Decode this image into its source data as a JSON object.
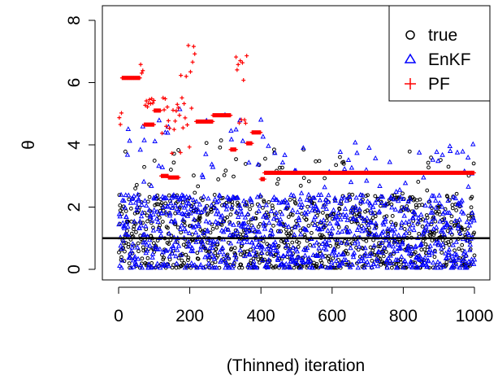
{
  "chart_data": {
    "type": "scatter",
    "title": "",
    "xlabel": "(Thinned) iteration",
    "ylabel": "θ",
    "xlim": [
      0,
      1000
    ],
    "ylim": [
      -0.2,
      8.2
    ],
    "x_ticks": [
      0,
      200,
      400,
      600,
      800,
      1000
    ],
    "y_ticks": [
      0,
      2,
      4,
      6,
      8
    ],
    "reference_line": {
      "y": 1.0,
      "color": "#000000"
    },
    "legend": {
      "position": "top-right",
      "entries": [
        "true",
        "EnKF",
        "PF"
      ]
    },
    "series": [
      {
        "name": "true",
        "marker": "circle",
        "color": "#000000",
        "n": 1000,
        "description_of_values": "dense cloud mostly 0–2.5, a few up to ~4.3"
      },
      {
        "name": "EnKF",
        "marker": "triangle",
        "color": "#0000ff",
        "n": 1000,
        "description_of_values": "dense cloud mostly 0–3, a few up to ~5.6"
      },
      {
        "name": "PF",
        "marker": "plus",
        "color": "#ff0000",
        "segments": [
          {
            "x": [
              2,
              8
            ],
            "y": [
              4.4,
              5.1
            ]
          },
          {
            "x": [
              10,
              60
            ],
            "y": 6.15
          },
          {
            "x": [
              62,
              70
            ],
            "y": [
              6.3,
              6.7
            ]
          },
          {
            "x": [
              72,
              100
            ],
            "y": 4.65
          },
          {
            "x": [
              75,
              100
            ],
            "y": [
              5.2,
              5.5
            ]
          },
          {
            "x": [
              100,
              118
            ],
            "y": 5.1
          },
          {
            "x": [
              120,
              140
            ],
            "y": 3.0
          },
          {
            "x": [
              122,
              145
            ],
            "y": [
              4.1,
              6.0
            ]
          },
          {
            "x": [
              140,
              170
            ],
            "y": 2.95
          },
          {
            "x": [
              150,
              175
            ],
            "y": [
              3.5,
              5.3
            ]
          },
          {
            "x": [
              175,
              215
            ],
            "y": [
              3.9,
              7.6
            ]
          },
          {
            "x": [
              218,
              265
            ],
            "y": 4.75
          },
          {
            "x": [
              265,
              315
            ],
            "y": 4.95
          },
          {
            "x": [
              315,
              330
            ],
            "y": 3.85
          },
          {
            "x": [
              330,
              360
            ],
            "y": [
              4.3,
              7.2
            ]
          },
          {
            "x": [
              360,
              375
            ],
            "y": 4.05
          },
          {
            "x": [
              375,
              400
            ],
            "y": 4.4
          },
          {
            "x": [
              400,
              410
            ],
            "y": 2.9
          },
          {
            "x": [
              410,
              1000
            ],
            "y": 3.1
          }
        ]
      }
    ]
  }
}
